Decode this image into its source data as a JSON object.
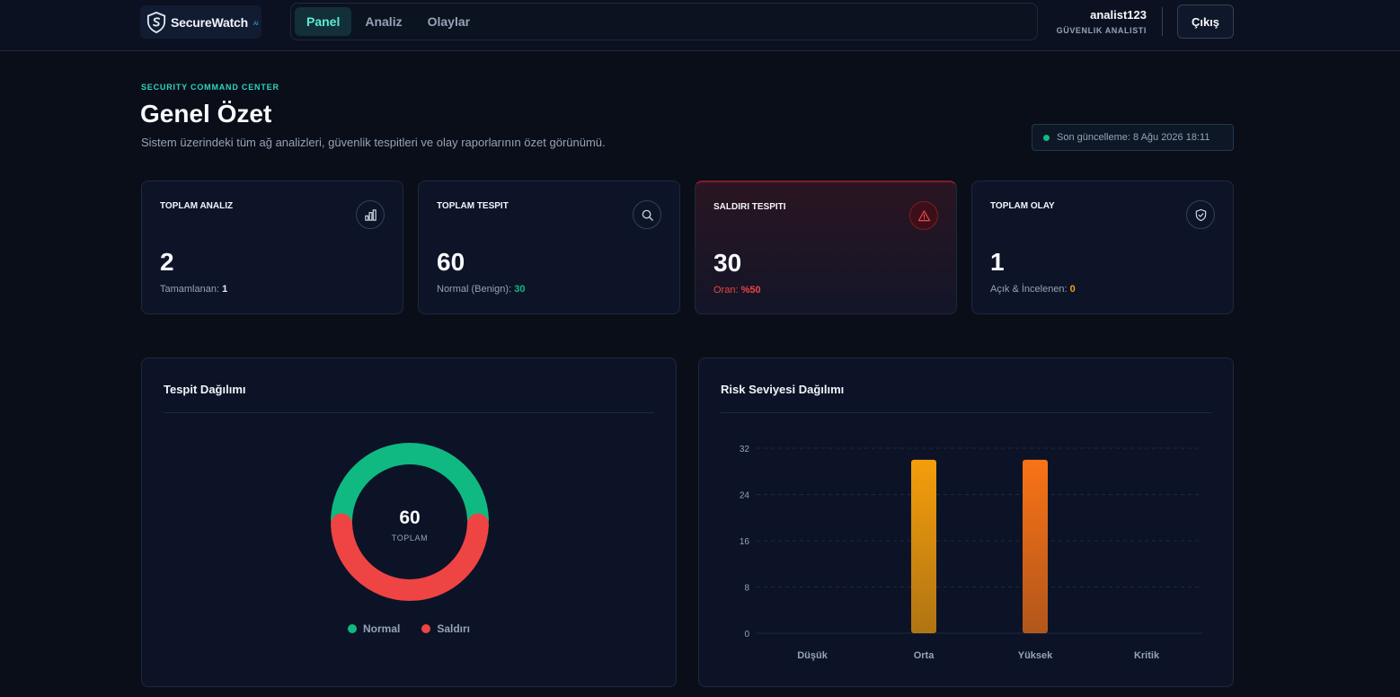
{
  "app": {
    "logo_text": "SecureWatch",
    "logo_sub": "AI"
  },
  "nav": {
    "tabs": [
      {
        "label": "Panel",
        "active": true
      },
      {
        "label": "Analiz",
        "active": false
      },
      {
        "label": "Olaylar",
        "active": false
      }
    ]
  },
  "user": {
    "name": "analist123",
    "role": "GÜVENLIK ANALISTI",
    "logout_label": "Çıkış"
  },
  "header": {
    "eyebrow": "SECURITY COMMAND CENTER",
    "title": "Genel Özet",
    "subtitle": "Sistem üzerindeki tüm ağ analizleri, güvenlik tespitleri ve olay raporlarının özet görünümü.",
    "last_updated": "Son güncelleme: 8 Ağu 2026 18:11"
  },
  "cards": [
    {
      "label": "TOPLAM ANALIZ",
      "value": "2",
      "foot_text": "Tamamlanan:",
      "foot_value": "1",
      "icon": "bar-chart-icon"
    },
    {
      "label": "TOPLAM TESPIT",
      "value": "60",
      "foot_text": "Normal (Benign):",
      "foot_value": "30",
      "icon": "search-icon"
    },
    {
      "label": "SALDIRI TESPITI",
      "value": "30",
      "foot_text": "Oran:",
      "foot_value": "%50",
      "icon": "warning-triangle-icon"
    },
    {
      "label": "TOPLAM OLAY",
      "value": "1",
      "foot_text": "Açık & İncelenen:",
      "foot_value": "0",
      "icon": "shield-check-icon"
    }
  ],
  "colors": {
    "accent": "#2dd4bf",
    "normal": "#10b981",
    "attack": "#ef4444",
    "medium": "#f59e0b",
    "high": "#f97316"
  },
  "chart_data": [
    {
      "type": "pie",
      "title": "Tespit Dağılımı",
      "center_value": "60",
      "center_label": "TOPLAM",
      "categories": [
        "Normal",
        "Saldırı"
      ],
      "values": [
        30,
        30
      ],
      "colors": [
        "#10b981",
        "#ef4444"
      ],
      "legend": "bottom"
    },
    {
      "type": "bar",
      "title": "Risk Seviyesi Dağılımı",
      "categories": [
        "Düşük",
        "Orta",
        "Yüksek",
        "Kritik"
      ],
      "values": [
        0,
        30,
        30,
        0
      ],
      "colors": [
        "#10b981",
        "#f59e0b",
        "#f97316",
        "#ef4444"
      ],
      "yticks": [
        0,
        8,
        16,
        24,
        32
      ],
      "ylim": [
        0,
        32
      ],
      "grid": true
    }
  ]
}
